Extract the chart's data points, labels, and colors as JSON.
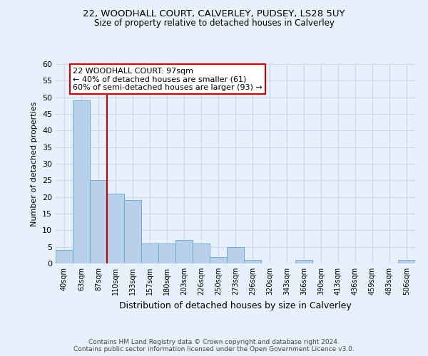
{
  "title1": "22, WOODHALL COURT, CALVERLEY, PUDSEY, LS28 5UY",
  "title2": "Size of property relative to detached houses in Calverley",
  "xlabel": "Distribution of detached houses by size in Calverley",
  "ylabel": "Number of detached properties",
  "categories": [
    "40sqm",
    "63sqm",
    "87sqm",
    "110sqm",
    "133sqm",
    "157sqm",
    "180sqm",
    "203sqm",
    "226sqm",
    "250sqm",
    "273sqm",
    "296sqm",
    "320sqm",
    "343sqm",
    "366sqm",
    "390sqm",
    "413sqm",
    "436sqm",
    "459sqm",
    "483sqm",
    "506sqm"
  ],
  "values": [
    4,
    49,
    25,
    21,
    19,
    6,
    6,
    7,
    6,
    2,
    5,
    1,
    0,
    0,
    1,
    0,
    0,
    0,
    0,
    0,
    1
  ],
  "bar_color": "#b8d0ea",
  "bar_edge_color": "#6baed6",
  "vline_color": "#cc0000",
  "annotation_box_text": "22 WOODHALL COURT: 97sqm\n← 40% of detached houses are smaller (61)\n60% of semi-detached houses are larger (93) →",
  "annotation_box_color": "#ffffff",
  "annotation_box_edge_color": "#cc0000",
  "ylim": [
    0,
    60
  ],
  "yticks": [
    0,
    5,
    10,
    15,
    20,
    25,
    30,
    35,
    40,
    45,
    50,
    55,
    60
  ],
  "grid_color": "#c8d8f0",
  "footer": "Contains HM Land Registry data © Crown copyright and database right 2024.\nContains public sector information licensed under the Open Government Licence v3.0.",
  "bg_color": "#e8f0fc",
  "title1_fontsize": 9.5,
  "title2_fontsize": 8.5
}
